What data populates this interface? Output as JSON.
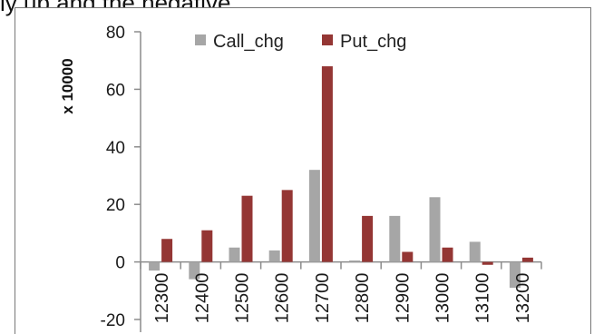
{
  "page": {
    "top_text": "ly up and the negative"
  },
  "chart_data": {
    "type": "bar",
    "title": "",
    "xlabel": "",
    "ylabel": "x 10000",
    "ylim": [
      -20,
      80
    ],
    "yticks": [
      80,
      60,
      40,
      20,
      0,
      -20
    ],
    "categories": [
      "12300",
      "12400",
      "12500",
      "12600",
      "12700",
      "12800",
      "12900",
      "13000",
      "13100",
      "13200"
    ],
    "series": [
      {
        "name": "Call_chg",
        "color": "#a6a6a6",
        "values": [
          -3,
          -6,
          5,
          4,
          32,
          0.5,
          16,
          22.5,
          7,
          -9
        ]
      },
      {
        "name": "Put_chg",
        "color": "#943634",
        "values": [
          8,
          11,
          23,
          25,
          68,
          16,
          3.5,
          5,
          -1,
          1.5
        ]
      }
    ],
    "legend_position": "top",
    "grid": false
  }
}
